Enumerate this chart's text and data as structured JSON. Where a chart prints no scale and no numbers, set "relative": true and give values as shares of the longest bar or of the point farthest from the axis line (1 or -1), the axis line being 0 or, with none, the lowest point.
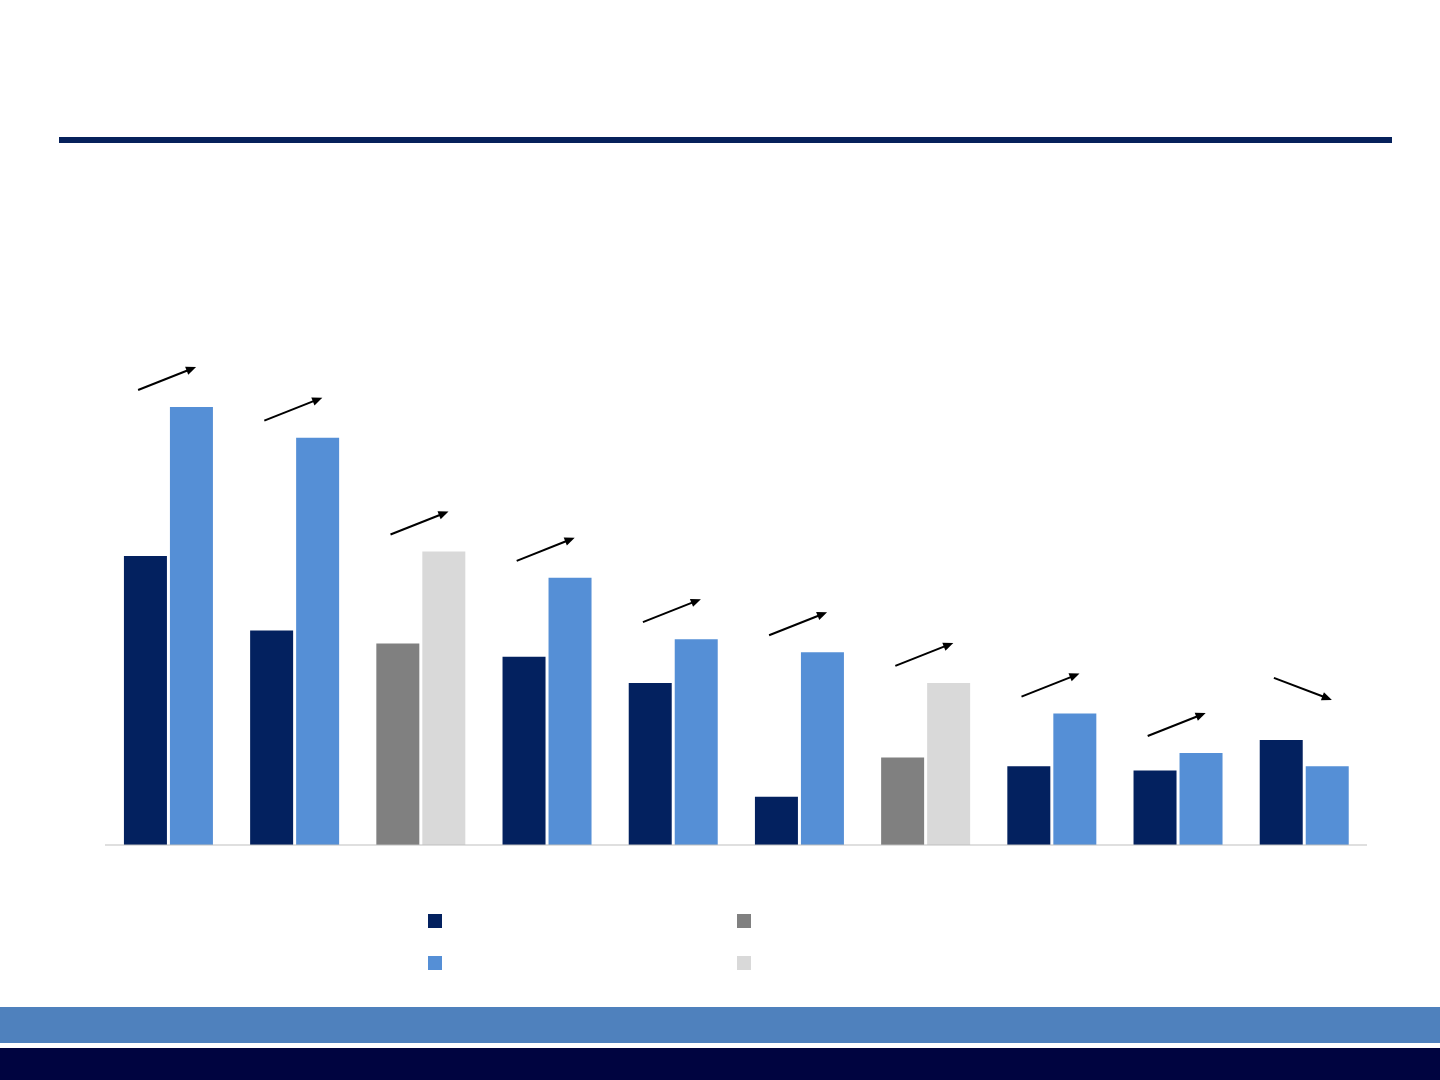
{
  "chart_data": {
    "type": "bar",
    "relative": true,
    "categories": [
      null,
      null,
      null,
      null,
      null,
      null,
      null,
      null,
      null,
      null
    ],
    "series": [
      {
        "colors": [
          "#03215f",
          "#03215f",
          "#808080",
          "#03215f",
          "#03215f",
          "#03215f",
          "#808080",
          "#03215f",
          "#03215f",
          "#03215f"
        ],
        "values": [
          0.66,
          0.49,
          0.46,
          0.43,
          0.37,
          0.11,
          0.2,
          0.18,
          0.17,
          0.24
        ]
      },
      {
        "colors": [
          "#558fd6",
          "#558fd6",
          "#d9d9d9",
          "#558fd6",
          "#558fd6",
          "#558fd6",
          "#d9d9d9",
          "#558fd6",
          "#558fd6",
          "#558fd6"
        ],
        "values": [
          1,
          0.93,
          0.67,
          0.61,
          0.47,
          0.44,
          0.37,
          0.3,
          0.21,
          0.18
        ]
      }
    ]
  }
}
